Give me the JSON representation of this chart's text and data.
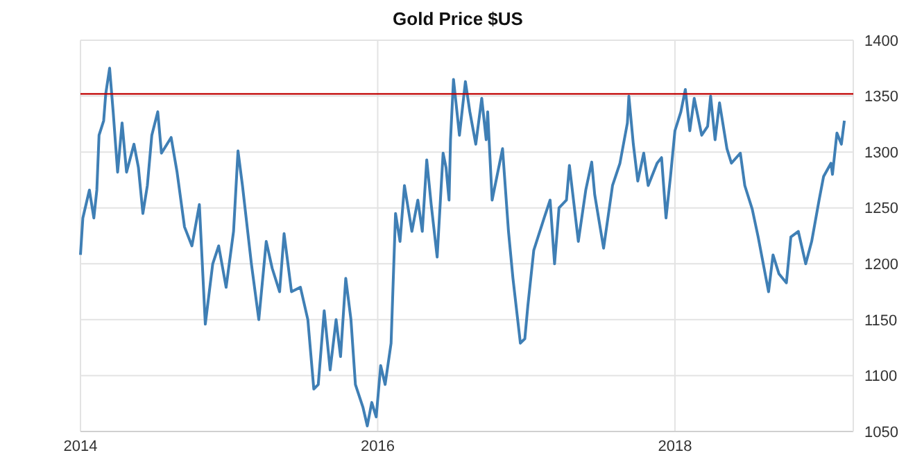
{
  "chart_data": {
    "type": "line",
    "title": "Gold Price $US",
    "x": [
      2014.0,
      2014.016,
      2014.06,
      2014.09,
      2014.11,
      2014.125,
      2014.156,
      2014.17,
      2014.196,
      2014.22,
      2014.25,
      2014.28,
      2014.31,
      2014.36,
      2014.39,
      2014.42,
      2014.45,
      2014.48,
      2014.52,
      2014.545,
      2014.61,
      2014.65,
      2014.7,
      2014.75,
      2014.8,
      2014.84,
      2014.89,
      2014.93,
      2014.98,
      2015.03,
      2015.06,
      2015.09,
      2015.15,
      2015.2,
      2015.25,
      2015.29,
      2015.34,
      2015.37,
      2015.42,
      2015.48,
      2015.53,
      2015.57,
      2015.6,
      2015.64,
      2015.68,
      2015.72,
      2015.75,
      2015.785,
      2015.82,
      2015.85,
      2015.9,
      2015.93,
      2015.96,
      2015.99,
      2016.02,
      2016.05,
      2016.09,
      2016.12,
      2016.15,
      2016.18,
      2016.23,
      2016.27,
      2016.3,
      2016.33,
      2016.36,
      2016.4,
      2016.44,
      2016.46,
      2016.48,
      2016.49,
      2016.51,
      2016.55,
      2016.59,
      2016.62,
      2016.66,
      2016.7,
      2016.73,
      2016.74,
      2016.77,
      2016.84,
      2016.88,
      2016.91,
      2016.96,
      2016.99,
      2017.01,
      2017.05,
      2017.12,
      2017.16,
      2017.19,
      2017.22,
      2017.27,
      2017.29,
      2017.35,
      2017.4,
      2017.44,
      2017.46,
      2017.52,
      2017.58,
      2017.63,
      2017.68,
      2017.69,
      2017.72,
      2017.75,
      2017.79,
      2017.82,
      2017.88,
      2017.91,
      2017.94,
      2017.97,
      2018.0,
      2018.04,
      2018.07,
      2018.1,
      2018.13,
      2018.18,
      2018.22,
      2018.24,
      2018.27,
      2018.3,
      2018.35,
      2018.38,
      2018.44,
      2018.47,
      2018.52,
      2018.56,
      2018.63,
      2018.66,
      2018.7,
      2018.75,
      2018.78,
      2018.83,
      2018.88,
      2018.92,
      2018.97,
      2019.0,
      2019.05,
      2019.06,
      2019.09,
      2019.12,
      2019.14
    ],
    "series": [
      {
        "color": "#3f7fb5",
        "values": [
          1208,
          1241,
          1266,
          1241,
          1266,
          1315,
          1328,
          1352,
          1375,
          1336,
          1282,
          1326,
          1282,
          1307,
          1286,
          1245,
          1270,
          1315,
          1336,
          1299,
          1313,
          1282,
          1233,
          1216,
          1253,
          1146,
          1200,
          1216,
          1179,
          1229,
          1301,
          1270,
          1200,
          1150,
          1220,
          1196,
          1175,
          1227,
          1175,
          1179,
          1150,
          1088,
          1092,
          1158,
          1105,
          1150,
          1117,
          1187,
          1150,
          1092,
          1072,
          1055,
          1076,
          1063,
          1109,
          1092,
          1129,
          1245,
          1220,
          1270,
          1229,
          1257,
          1229,
          1293,
          1253,
          1206,
          1299,
          1286,
          1257,
          1311,
          1365,
          1315,
          1363,
          1336,
          1307,
          1348,
          1311,
          1336,
          1257,
          1303,
          1229,
          1187,
          1129,
          1133,
          1162,
          1212,
          1241,
          1257,
          1200,
          1250,
          1257,
          1288,
          1220,
          1266,
          1291,
          1262,
          1214,
          1270,
          1290,
          1326,
          1350,
          1307,
          1274,
          1299,
          1270,
          1290,
          1295,
          1241,
          1278,
          1319,
          1336,
          1356,
          1319,
          1348,
          1315,
          1323,
          1350,
          1311,
          1344,
          1303,
          1290,
          1299,
          1270,
          1249,
          1224,
          1175,
          1208,
          1191,
          1183,
          1224,
          1229,
          1200,
          1220,
          1257,
          1278,
          1290,
          1280,
          1317,
          1307,
          1328
        ]
      }
    ],
    "xlim": [
      2014,
      2019.2
    ],
    "xticks": [
      2014,
      2016,
      2018
    ],
    "ylim": [
      1050,
      1400
    ],
    "yticks": [
      1050,
      1100,
      1150,
      1200,
      1250,
      1300,
      1350,
      1400
    ],
    "ref_lines": [
      {
        "axis": "y",
        "value": 1352,
        "color": "#c00000"
      }
    ],
    "grid": true
  }
}
